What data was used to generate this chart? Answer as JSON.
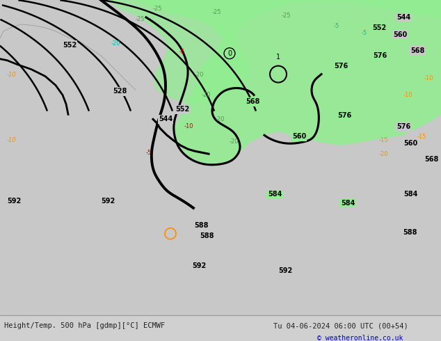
{
  "title_left": "Height/Temp. 500 hPa [gdmp][°C] ECMWF",
  "title_right": "Tu 04-06-2024 06:00 UTC (00+54)",
  "copyright": "© weatheronline.co.uk",
  "bg_color": "#d0d0d0",
  "map_bg_color": "#c8c8c8",
  "green_fill_color": "#90ee90",
  "label_color_black": "#000000",
  "label_color_orange": "#ff8c00",
  "label_color_red": "#cc0000",
  "label_color_green": "#559955",
  "label_color_cyan": "#00bbbb",
  "bottom_bar_color": "#e8e8e8",
  "bottom_text_color": "#222222",
  "copyright_color": "#0000cc"
}
